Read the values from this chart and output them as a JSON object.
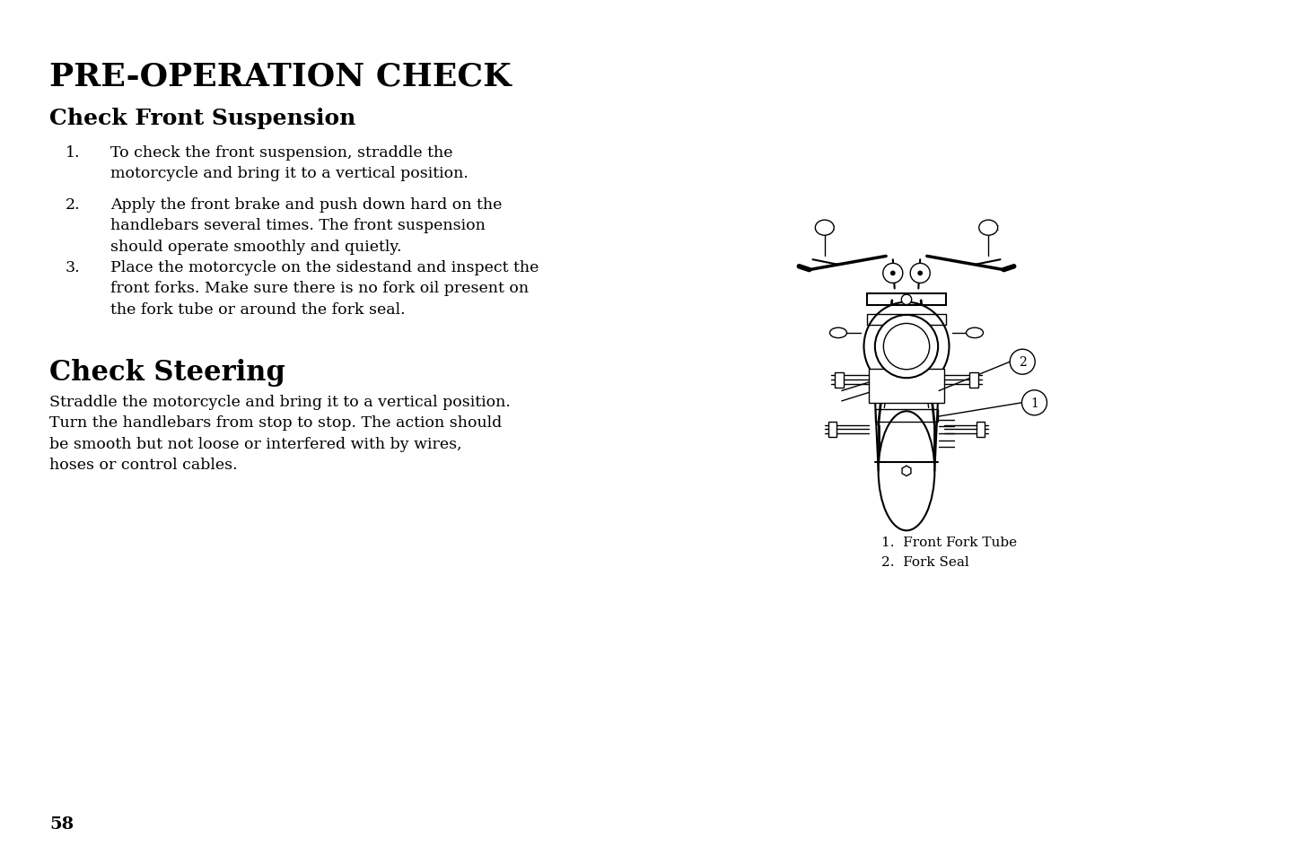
{
  "bg_color": "#ffffff",
  "title": "PRE-OPERATION CHECK",
  "subtitle": "Check Front Suspension",
  "body_items": [
    {
      "num": "1.",
      "text": "To check the front suspension, straddle the\nmotorcycle and bring it to a vertical position."
    },
    {
      "num": "2.",
      "text": "Apply the front brake and push down hard on the\nhandlebars several times. The front suspension\nshould operate smoothly and quietly."
    },
    {
      "num": "3.",
      "text": "Place the motorcycle on the sidestand and inspect the\nfront forks. Make sure there is no fork oil present on\nthe fork tube or around the fork seal."
    }
  ],
  "section2_title": "Check Steering",
  "section2_body": "Straddle the motorcycle and bring it to a vertical position.\nTurn the handlebars from stop to stop. The action should\nbe smooth but not loose or interfered with by wires,\nhoses or control cables.",
  "caption_items": [
    "1.  Front Fork Tube",
    "2.  Fork Seal"
  ],
  "page_number": "58",
  "title_fontsize": 26,
  "subtitle_fontsize": 18,
  "section2_title_fontsize": 22,
  "body_fontsize": 12.5,
  "caption_fontsize": 11,
  "page_num_fontsize": 14
}
